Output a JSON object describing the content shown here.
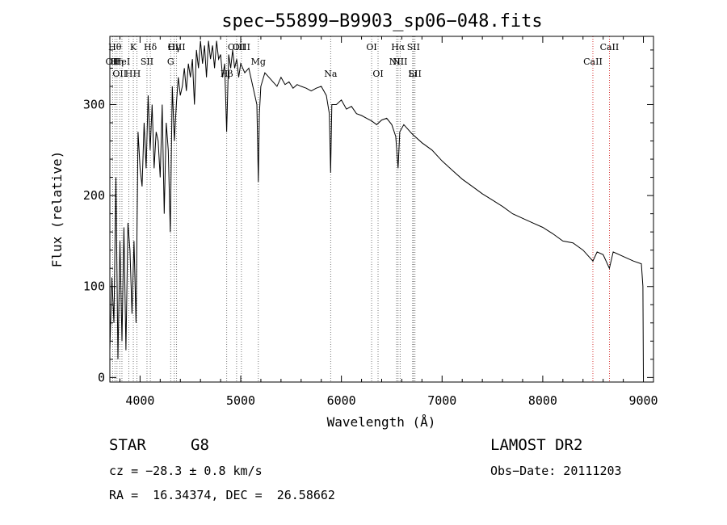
{
  "chart_data": {
    "type": "line",
    "title": "spec−55899−B9903_sp06−048.fits",
    "xlabel": "Wavelength (Å)",
    "ylabel": "Flux (relative)",
    "xlim": [
      3700,
      9100
    ],
    "ylim": [
      -5,
      375
    ],
    "xticks": [
      4000,
      5000,
      6000,
      7000,
      8000,
      9000
    ],
    "yticks": [
      0,
      100,
      200,
      300
    ],
    "grid": false,
    "series": [
      {
        "x": [
          3700,
          3720,
          3740,
          3760,
          3780,
          3800,
          3820,
          3840,
          3860,
          3880,
          3900,
          3920,
          3940,
          3960,
          3980,
          4000,
          4020,
          4040,
          4060,
          4080,
          4100,
          4120,
          4140,
          4160,
          4180,
          4200,
          4220,
          4240,
          4260,
          4280,
          4300,
          4320,
          4340,
          4360,
          4380,
          4400,
          4420,
          4440,
          4460,
          4480,
          4500,
          4520,
          4540,
          4560,
          4580,
          4600,
          4620,
          4640,
          4660,
          4680,
          4700,
          4720,
          4740,
          4760,
          4780,
          4800,
          4820,
          4840,
          4860,
          4880,
          4900,
          4920,
          4940,
          4960,
          4980,
          5000,
          5040,
          5080,
          5120,
          5160,
          5175,
          5185,
          5200,
          5240,
          5280,
          5320,
          5360,
          5400,
          5440,
          5480,
          5520,
          5560,
          5600,
          5650,
          5700,
          5750,
          5800,
          5850,
          5880,
          5893,
          5905,
          5950,
          6000,
          6050,
          6100,
          6150,
          6200,
          6250,
          6300,
          6350,
          6400,
          6450,
          6500,
          6540,
          6563,
          6580,
          6620,
          6700,
          6800,
          6900,
          7000,
          7100,
          7200,
          7300,
          7400,
          7500,
          7600,
          7700,
          7800,
          7900,
          8000,
          8100,
          8200,
          8300,
          8400,
          8498,
          8540,
          8600,
          8662,
          8700,
          8800,
          8900,
          8980,
          8995,
          9000
        ],
        "y": [
          30,
          110,
          60,
          220,
          20,
          150,
          40,
          165,
          30,
          170,
          140,
          70,
          150,
          60,
          270,
          230,
          210,
          280,
          230,
          310,
          250,
          300,
          230,
          270,
          260,
          220,
          300,
          180,
          280,
          250,
          160,
          320,
          260,
          300,
          330,
          310,
          320,
          340,
          315,
          345,
          330,
          350,
          300,
          360,
          340,
          370,
          345,
          365,
          330,
          370,
          350,
          365,
          340,
          370,
          350,
          355,
          330,
          345,
          270,
          355,
          340,
          360,
          340,
          350,
          330,
          345,
          335,
          340,
          320,
          300,
          215,
          290,
          320,
          335,
          330,
          325,
          320,
          330,
          322,
          325,
          318,
          322,
          320,
          318,
          315,
          318,
          320,
          310,
          290,
          225,
          300,
          300,
          305,
          295,
          298,
          290,
          288,
          285,
          282,
          278,
          283,
          285,
          278,
          265,
          230,
          270,
          278,
          268,
          258,
          250,
          238,
          228,
          218,
          210,
          202,
          195,
          188,
          180,
          175,
          170,
          165,
          158,
          150,
          148,
          140,
          128,
          138,
          135,
          120,
          138,
          133,
          128,
          125,
          100,
          0
        ]
      }
    ],
    "spectral_lines": [
      {
        "wave": 3727,
        "upper": "",
        "lower": "OII"
      },
      {
        "wave": 3750,
        "upper": "Hθ",
        "lower": ""
      },
      {
        "wave": 3771,
        "upper": "",
        "lower": "Hη"
      },
      {
        "wave": 3798,
        "upper": "",
        "lower": "OII"
      },
      {
        "wave": 3820,
        "upper": "",
        "lower": "HeI"
      },
      {
        "wave": 3889,
        "upper": "",
        "lower": "H"
      },
      {
        "wave": 3933,
        "upper": "K",
        "lower": ""
      },
      {
        "wave": 3968,
        "upper": "",
        "lower": "H"
      },
      {
        "wave": 4069,
        "upper": "",
        "lower": "SII"
      },
      {
        "wave": 4102,
        "upper": "Hδ",
        "lower": ""
      },
      {
        "wave": 4304,
        "upper": "",
        "lower": "G"
      },
      {
        "wave": 4340,
        "upper": "Hγ",
        "lower": ""
      },
      {
        "wave": 4363,
        "upper": "OIII",
        "lower": ""
      },
      {
        "wave": 4861,
        "upper": "",
        "lower": "Hβ"
      },
      {
        "wave": 4959,
        "upper": "OIII",
        "lower": ""
      },
      {
        "wave": 5007,
        "upper": "OIII",
        "lower": ""
      },
      {
        "wave": 5175,
        "upper": "",
        "lower": "Mg"
      },
      {
        "wave": 5893,
        "upper": "",
        "lower": "Na"
      },
      {
        "wave": 6300,
        "upper": "OI",
        "lower": ""
      },
      {
        "wave": 6364,
        "upper": "",
        "lower": "OI"
      },
      {
        "wave": 6548,
        "upper": "",
        "lower": "NII"
      },
      {
        "wave": 6563,
        "upper": "Hα",
        "lower": ""
      },
      {
        "wave": 6583,
        "upper": "",
        "lower": "NII"
      },
      {
        "wave": 6708,
        "upper": "",
        "lower": "Li"
      },
      {
        "wave": 6716,
        "upper": "SII",
        "lower": ""
      },
      {
        "wave": 6731,
        "upper": "",
        "lower": "SII"
      },
      {
        "wave": 8498,
        "upper": "",
        "lower": "CaII"
      },
      {
        "wave": 8662,
        "upper": "CaII",
        "lower": ""
      }
    ],
    "line_colors": {
      "red": "#cc0000",
      "gray": "#555555"
    }
  },
  "info": {
    "object_class": "STAR",
    "subclass": "G8",
    "survey": "LAMOST DR2",
    "cz": "cz = −28.3 ± 0.8 km/s",
    "obs_date": "Obs−Date: 20111203",
    "coords": "RA =  16.34374, DEC =  26.58662"
  }
}
